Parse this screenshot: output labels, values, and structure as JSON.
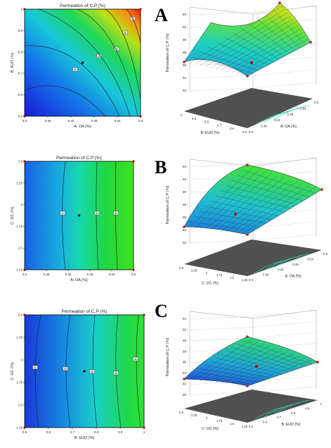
{
  "panel_labels": [
    "A",
    "B",
    "C"
  ],
  "colors": {
    "low": "#1818d8",
    "high": "#e81808",
    "contour": "#1a1a1a",
    "floor": "#505050"
  },
  "chart_data": [
    {
      "type": "heatmap",
      "id": "A-contour",
      "title": "Permeation of C.P (%)",
      "xlabel": "A: OA (%)",
      "ylabel": "B: EUO (%)",
      "xlim": [
        0.3,
        0.6
      ],
      "ylim": [
        0.5,
        1.0
      ],
      "xticks": [
        "0.3",
        "0.36",
        "0.42",
        "0.48",
        "0.54",
        "0.6"
      ],
      "yticks": [
        "0.5",
        "0.6",
        "0.7",
        "0.8",
        "0.9",
        "1"
      ],
      "contour_labels": [
        "82",
        "84",
        "86",
        "88",
        "90",
        "92"
      ],
      "design_point": {
        "x": 0.45,
        "y": 0.75
      }
    },
    {
      "type": "surface",
      "id": "A-surface",
      "zlabel": "Permeation of C.P (%)",
      "xlabel": "A: OA (%)",
      "ylabel": "B: EUO (%)",
      "xticks": [
        "0.3",
        "0.36",
        "0.42",
        "0.48",
        "0.54",
        "0.6"
      ],
      "yticks": [
        "0.5",
        "0.6",
        "0.7",
        "0.8",
        "0.9",
        "1"
      ],
      "zticks": [
        "82",
        "84",
        "86",
        "88",
        "90",
        "92",
        "94"
      ],
      "zlim": [
        82,
        94
      ]
    },
    {
      "type": "heatmap",
      "id": "B-contour",
      "title": "Permeation of C.P (%)",
      "xlabel": "A: OA (%)",
      "ylabel": "C: GC (%)",
      "xlim": [
        0.3,
        0.6
      ],
      "ylim": [
        1.25,
        2.5
      ],
      "xticks": [
        "0.3",
        "0.36",
        "0.42",
        "0.48",
        "0.54",
        "0.6"
      ],
      "yticks": [
        "1.25",
        "1.5",
        "1.75",
        "2",
        "2.25",
        "2.5"
      ],
      "contour_labels": [
        "84",
        "86",
        "88"
      ],
      "design_point": {
        "x": 0.45,
        "y": 1.875
      }
    },
    {
      "type": "surface",
      "id": "B-surface",
      "zlabel": "Permeation of C.P (%)",
      "xlabel": "A: OA (%)",
      "ylabel": "C: GC (%)",
      "xticks": [
        "0.3",
        "0.36",
        "0.42",
        "0.48",
        "0.54",
        "0.6"
      ],
      "yticks": [
        "1.25",
        "1.5",
        "1.75",
        "2",
        "2.25",
        "2.5"
      ],
      "zticks": [
        "82",
        "84",
        "86",
        "88",
        "90",
        "92",
        "94"
      ],
      "zlim": [
        82,
        94
      ]
    },
    {
      "type": "heatmap",
      "id": "C-contour",
      "title": "Permeation of C.P (%)",
      "xlabel": "B: EUO (%)",
      "ylabel": "C: GC (%)",
      "xlim": [
        0.5,
        1.0
      ],
      "ylim": [
        1.25,
        2.5
      ],
      "xticks": [
        "0.5",
        "0.6",
        "0.7",
        "0.8",
        "0.9",
        "1"
      ],
      "yticks": [
        "1.25",
        "1.5",
        "1.75",
        "2",
        "2.25",
        "2.5"
      ],
      "contour_labels": [
        "82",
        "83",
        "84",
        "85",
        "86"
      ],
      "design_point": {
        "x": 0.75,
        "y": 1.875
      }
    },
    {
      "type": "surface",
      "id": "C-surface",
      "zlabel": "Permeation of C.P (%)",
      "xlabel": "B: EUO (%)",
      "ylabel": "C: GC (%)",
      "xticks": [
        "0.5",
        "0.6",
        "0.7",
        "0.8",
        "0.9",
        "1"
      ],
      "yticks": [
        "1.25",
        "1.5",
        "1.75",
        "2",
        "2.25",
        "2.5"
      ],
      "zticks": [
        "80",
        "82",
        "84",
        "86",
        "88",
        "90",
        "92",
        "94"
      ],
      "zlim": [
        80,
        94
      ]
    }
  ]
}
